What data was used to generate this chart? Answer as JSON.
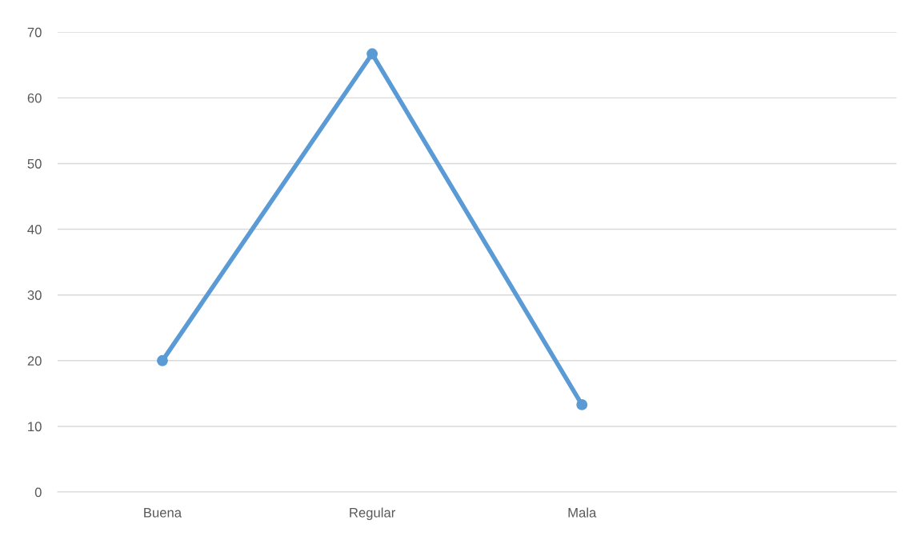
{
  "chart_data": {
    "type": "line",
    "categories": [
      "Buena",
      "Regular",
      "Mala",
      null
    ],
    "series": [
      {
        "color": "#5b9bd5",
        "values": [
          20,
          66.7,
          13.3,
          null
        ]
      }
    ],
    "ylim": [
      0,
      70
    ],
    "yticks": [
      0,
      10,
      20,
      30,
      40,
      50,
      60,
      70
    ],
    "grid": "y",
    "marker": "circle",
    "line_style": "solid",
    "legend": false
  }
}
